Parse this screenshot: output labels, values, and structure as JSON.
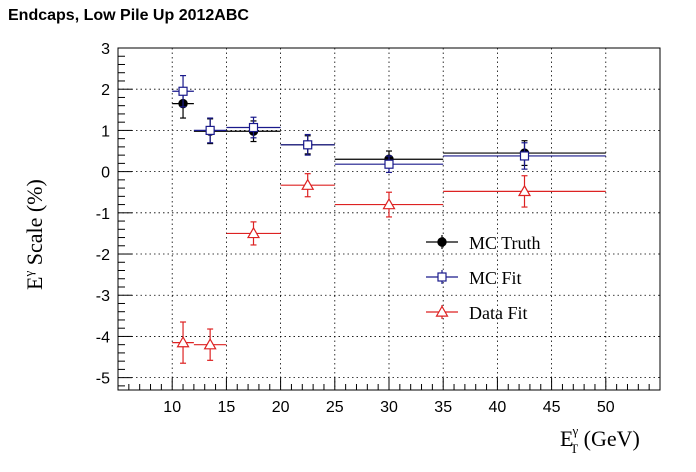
{
  "chart_data": {
    "type": "scatter",
    "title": "Endcaps,  Low Pile Up 2012ABC",
    "xlabel": {
      "main": "E",
      "sup": "γ",
      "sub": "T",
      "rest": " (GeV)"
    },
    "ylabel": {
      "main": "E",
      "sup": "γ",
      "rest": " Scale (%)"
    },
    "xlim": [
      5,
      55
    ],
    "ylim": [
      -5.3,
      3
    ],
    "xticks": [
      10,
      15,
      20,
      25,
      30,
      35,
      40,
      45,
      50
    ],
    "yticks": [
      -5,
      -4,
      -3,
      -2,
      -1,
      0,
      1,
      2,
      3
    ],
    "grid": true,
    "legend_position": "center-right",
    "series": [
      {
        "name": "MC Truth",
        "color": "#000000",
        "marker": "filled-circle",
        "points": [
          {
            "x": 11,
            "xlo": 10,
            "xhi": 12,
            "y": 1.65,
            "yerr": 0.35
          },
          {
            "x": 13.5,
            "xlo": 12,
            "xhi": 15,
            "y": 0.98,
            "yerr": 0.3
          },
          {
            "x": 17.5,
            "xlo": 15,
            "xhi": 20,
            "y": 0.98,
            "yerr": 0.25
          },
          {
            "x": 22.5,
            "xlo": 20,
            "xhi": 25,
            "y": 0.65,
            "yerr": 0.22
          },
          {
            "x": 30,
            "xlo": 25,
            "xhi": 35,
            "y": 0.3,
            "yerr": 0.2
          },
          {
            "x": 42.5,
            "xlo": 35,
            "xhi": 50,
            "y": 0.45,
            "yerr": 0.3
          }
        ]
      },
      {
        "name": "MC Fit",
        "color": "#1a1a8c",
        "marker": "open-square",
        "points": [
          {
            "x": 11,
            "xlo": 10,
            "xhi": 12,
            "y": 1.95,
            "yerr": 0.38
          },
          {
            "x": 13.5,
            "xlo": 12,
            "xhi": 15,
            "y": 1.0,
            "yerr": 0.3
          },
          {
            "x": 17.5,
            "xlo": 15,
            "xhi": 20,
            "y": 1.07,
            "yerr": 0.25
          },
          {
            "x": 22.5,
            "xlo": 20,
            "xhi": 25,
            "y": 0.65,
            "yerr": 0.25
          },
          {
            "x": 30,
            "xlo": 25,
            "xhi": 35,
            "y": 0.18,
            "yerr": 0.2
          },
          {
            "x": 42.5,
            "xlo": 35,
            "xhi": 50,
            "y": 0.38,
            "yerr": 0.32
          }
        ]
      },
      {
        "name": "Data Fit",
        "color": "#dd2222",
        "marker": "open-triangle",
        "points": [
          {
            "x": 11,
            "xlo": 10,
            "xhi": 12,
            "y": -4.15,
            "yerr": 0.5
          },
          {
            "x": 13.5,
            "xlo": 12,
            "xhi": 15,
            "y": -4.2,
            "yerr": 0.38
          },
          {
            "x": 17.5,
            "xlo": 15,
            "xhi": 20,
            "y": -1.5,
            "yerr": 0.28
          },
          {
            "x": 22.5,
            "xlo": 20,
            "xhi": 25,
            "y": -0.33,
            "yerr": 0.28
          },
          {
            "x": 30,
            "xlo": 25,
            "xhi": 35,
            "y": -0.8,
            "yerr": 0.3
          },
          {
            "x": 42.5,
            "xlo": 35,
            "xhi": 50,
            "y": -0.48,
            "yerr": 0.38
          }
        ]
      }
    ]
  }
}
